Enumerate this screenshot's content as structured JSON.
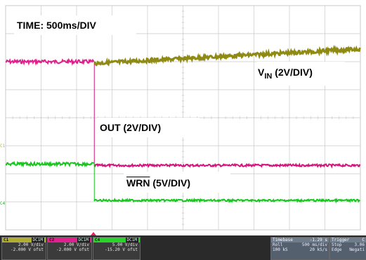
{
  "screen": {
    "background": "#ffffff",
    "grid_color": "#c9c9c9",
    "colors": {
      "vin": "#8f8a14",
      "out": "#d4147a",
      "wrn": "#17c71e",
      "out_pre": "#e0208c"
    }
  },
  "chart_data": {
    "type": "line",
    "title": "TIME: 500ms/DIV",
    "x_divisions": 10,
    "y_divisions": 8,
    "event_x_division": 2.5,
    "traces": [
      {
        "name": "VIN (2V/DIV)",
        "label_main": "V",
        "label_sub": "IN",
        "label_suffix": " (2V/DIV)",
        "shape": "ramp",
        "start_div": 2.5,
        "level_start_div": 2.06,
        "level_end_div": 1.55
      },
      {
        "name": "OUT (2V/DIV)",
        "label_main": "OUT (2V/DIV)",
        "shape": "step-up",
        "start_div": 2.5,
        "level_before_div": 2.0,
        "level_after_div": 5.7
      },
      {
        "name": "WRN (5V/DIV)",
        "label_main": "WRN",
        "label_suffix": " (5V/DIV)",
        "overline": true,
        "shape": "step-down",
        "level_before_div": 5.65,
        "level_after_div": 6.95
      }
    ]
  },
  "bottom_bar": {
    "channels": [
      {
        "id": "C1",
        "coupling": "DC1M",
        "scale": "2.00 V/div",
        "offset": "-2.000 V ofst",
        "color": "#b0ad32"
      },
      {
        "id": "C2",
        "coupling": "DC1M",
        "scale": "2.00 V/div",
        "offset": "-2.000 V ofst",
        "color": "#e0208c"
      },
      {
        "id": "C4",
        "coupling": "DC1M",
        "scale": "5.00 V/div",
        "offset": "-15.20 V ofst",
        "color": "#2bd22b"
      }
    ],
    "timebase": {
      "label": "Timebase",
      "value": "-1.29 s",
      "mode": "Roll",
      "scale": "500 ms/div",
      "points": "100 kS",
      "rate": "20 kS/s"
    },
    "trigger": {
      "label": "Trigger",
      "ch": "C",
      "mode": "Stop",
      "level": "3.06",
      "type": "Edge",
      "slope": "Negati"
    }
  },
  "markers": {
    "ch1": "C1",
    "ch4": "C4"
  }
}
